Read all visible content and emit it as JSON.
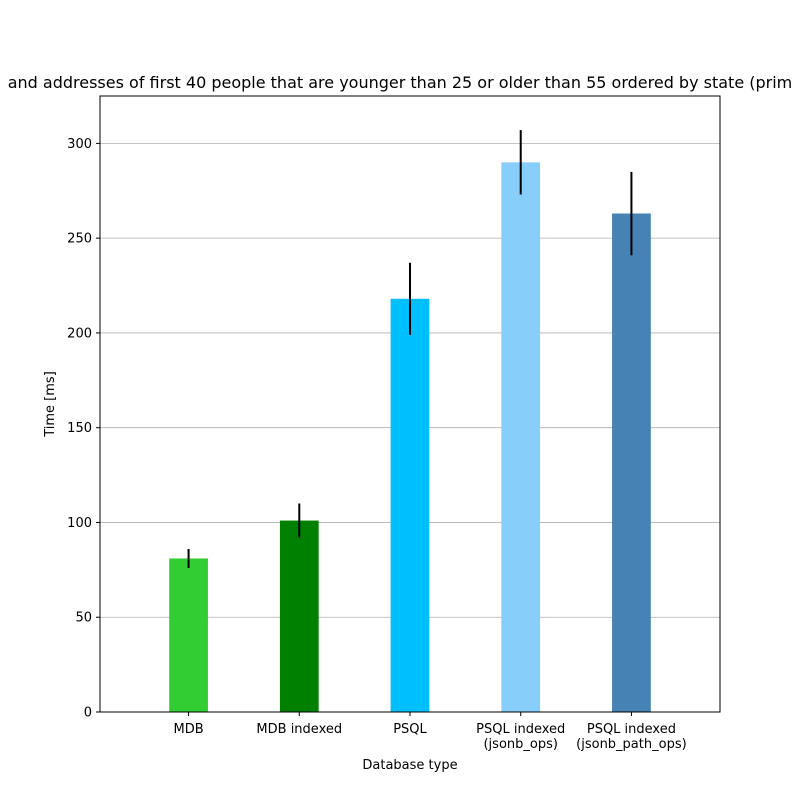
{
  "chart_data": {
    "type": "bar",
    "title": "and addresses of first 40 people that are younger than 25 or older than 55 ordered by state (prim",
    "xlabel": "Database type",
    "ylabel": "Time [ms]",
    "ylim": [
      0,
      325
    ],
    "yticks": [
      0,
      50,
      100,
      150,
      200,
      250,
      300
    ],
    "grid": "y",
    "categories": [
      [
        "MDB"
      ],
      [
        "MDB indexed"
      ],
      [
        "PSQL"
      ],
      [
        "PSQL indexed",
        "(jsonb_ops)"
      ],
      [
        "PSQL indexed",
        "(jsonb_path_ops)"
      ]
    ],
    "values": [
      81,
      101,
      218,
      290,
      263
    ],
    "errors": [
      [
        76,
        86
      ],
      [
        92,
        110
      ],
      [
        199,
        237
      ],
      [
        273,
        307
      ],
      [
        241,
        285
      ]
    ],
    "colors": [
      "#32cd32",
      "#008000",
      "#00bfff",
      "#87cefa",
      "#4682b4"
    ]
  }
}
